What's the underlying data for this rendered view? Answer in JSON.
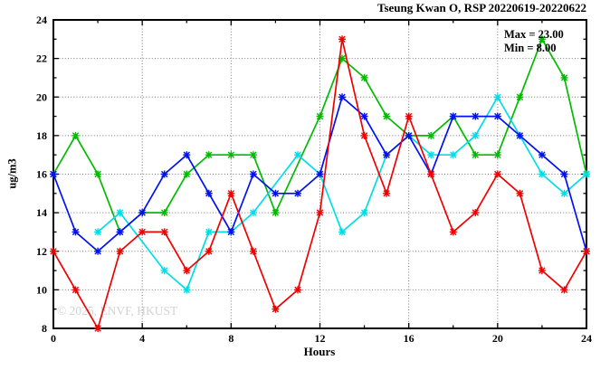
{
  "watermark": "© 2025, ENVF, HKUST",
  "chart_data": {
    "type": "line",
    "title": "Tseung Kwan O, RSP 20220619-20220622",
    "xlabel": "Hours",
    "ylabel": "ug/m3",
    "xlim": [
      0,
      24
    ],
    "ylim": [
      8,
      24
    ],
    "grid": true,
    "legend_position": "none",
    "annotations": {
      "max_label": "Max = 23.00",
      "min_label": "Min = 8.00"
    },
    "axes": {
      "x": {
        "major_ticks": [
          0,
          4,
          8,
          12,
          16,
          20,
          24
        ],
        "minor_ticks": [
          2,
          6,
          10,
          14,
          18,
          22
        ],
        "gridlines": [
          4,
          8,
          12,
          16,
          20
        ],
        "tick_labels": [
          "0",
          "4",
          "8",
          "12",
          "16",
          "20",
          "24"
        ]
      },
      "y": {
        "major_ticks": [
          8,
          10,
          12,
          14,
          16,
          18,
          20,
          22,
          24
        ],
        "minor_ticks": [
          9,
          11,
          13,
          15,
          17,
          19,
          21,
          23
        ],
        "gridlines": [
          10,
          12,
          14,
          16,
          18,
          20,
          22
        ],
        "tick_labels": [
          "8",
          "10",
          "12",
          "14",
          "16",
          "18",
          "20",
          "22",
          "24"
        ]
      }
    },
    "x": [
      0,
      1,
      2,
      3,
      4,
      5,
      6,
      7,
      8,
      9,
      10,
      11,
      12,
      13,
      14,
      15,
      16,
      17,
      18,
      19,
      20,
      21,
      22,
      23,
      24
    ],
    "series": [
      {
        "name": "day-1-green",
        "color": "#00bb00",
        "values": [
          16,
          18,
          16,
          13,
          14,
          14,
          16,
          17,
          17,
          17,
          14,
          null,
          19,
          22,
          21,
          19,
          18,
          18,
          19,
          17,
          17,
          20,
          23,
          21,
          16
        ]
      },
      {
        "name": "day-2-cyan",
        "color": "#00dde6",
        "values": [
          null,
          null,
          13,
          14,
          null,
          11,
          10,
          13,
          13,
          14,
          null,
          17,
          16,
          13,
          14,
          17,
          18,
          17,
          17,
          18,
          20,
          18,
          16,
          15,
          16
        ]
      },
      {
        "name": "day-3-blue",
        "color": "#0010f0",
        "values": [
          16,
          13,
          12,
          13,
          14,
          16,
          17,
          15,
          13,
          16,
          15,
          15,
          16,
          20,
          19,
          17,
          18,
          16,
          19,
          19,
          19,
          18,
          17,
          16,
          12
        ]
      },
      {
        "name": "day-4-red",
        "color": "#f00000",
        "values": [
          12,
          10,
          8,
          12,
          13,
          13,
          11,
          12,
          15,
          12,
          9,
          10,
          14,
          23,
          18,
          15,
          19,
          16,
          13,
          14,
          16,
          15,
          11,
          10,
          12
        ]
      }
    ]
  }
}
